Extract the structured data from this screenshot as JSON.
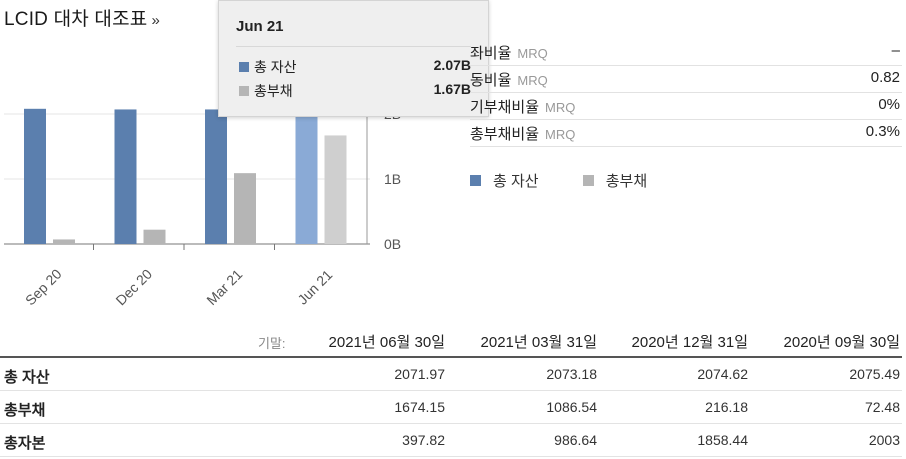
{
  "title": "LCID 대차 대조표",
  "title_arrow": "»",
  "colors": {
    "assets": "#5b7fae",
    "assets_highlight": "#8aaad6",
    "liabilities": "#b5b5b5",
    "liabilities_highlight": "#cfcfcf"
  },
  "tooltip": {
    "title": "Jun 21",
    "rows": [
      {
        "label": "총 자산",
        "value": "2.07B",
        "color": "#5b7fae"
      },
      {
        "label": "총부채",
        "value": "1.67B",
        "color": "#b5b5b5"
      }
    ]
  },
  "ratios": [
    {
      "label": "좌비율",
      "sub": "MRQ",
      "value": "–"
    },
    {
      "label": "동비율",
      "sub": "MRQ",
      "value": "0.82"
    },
    {
      "label": "기부채비율",
      "sub": "MRQ",
      "value": "0%"
    },
    {
      "label": "총부채비율",
      "sub": "MRQ",
      "value": "0.3%"
    }
  ],
  "legend": [
    {
      "label": "총 자산",
      "color": "#5b7fae"
    },
    {
      "label": "총부채",
      "color": "#b5b5b5"
    }
  ],
  "chart_data": {
    "type": "bar",
    "categories": [
      "Sep 20",
      "Dec 20",
      "Mar 21",
      "Jun 21"
    ],
    "series": [
      {
        "name": "총 자산",
        "values": [
          2.08,
          2.07,
          2.07,
          2.07
        ]
      },
      {
        "name": "총부채",
        "values": [
          0.07,
          0.22,
          1.09,
          1.67
        ]
      }
    ],
    "highlighted_category": "Jun 21",
    "y_ticks": [
      "0B",
      "1B",
      "2B"
    ],
    "ylim": [
      0,
      3
    ],
    "grid": true,
    "legend": "right"
  },
  "table": {
    "period_label": "기말:",
    "columns": [
      "2021년 06월 30일",
      "2021년 03월 31일",
      "2020년 12월 31일",
      "2020년 09월 30일"
    ],
    "rows": [
      {
        "label": "총 자산",
        "values": [
          "2071.97",
          "2073.18",
          "2074.62",
          "2075.49"
        ]
      },
      {
        "label": "총부채",
        "values": [
          "1674.15",
          "1086.54",
          "216.18",
          "72.48"
        ]
      },
      {
        "label": "총자본",
        "values": [
          "397.82",
          "986.64",
          "1858.44",
          "2003"
        ]
      }
    ]
  }
}
